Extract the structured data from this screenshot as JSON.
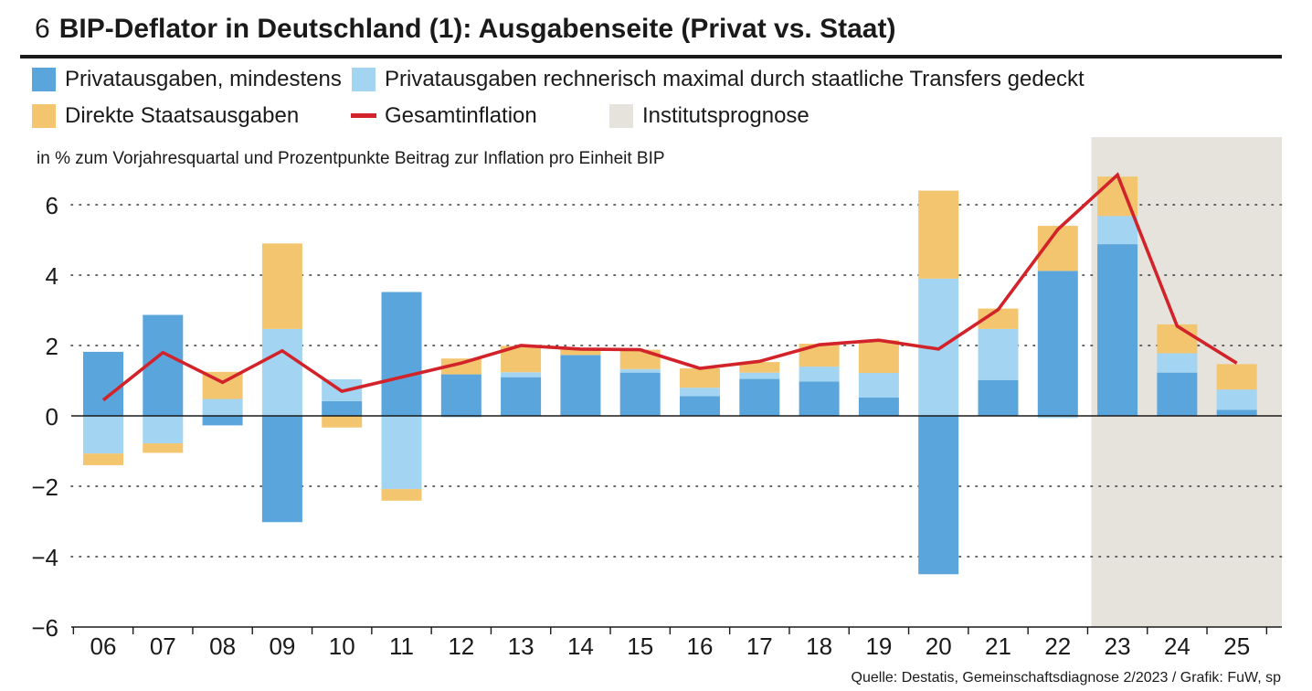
{
  "header": {
    "number": "6",
    "title": "BIP-Deflator in Deutschland (1): Ausgabenseite (Privat vs. Staat)"
  },
  "legend": {
    "priv_min": {
      "label": "Privatausgaben, mindestens",
      "color": "#5aa6dc"
    },
    "priv_max": {
      "label": "Privatausgaben rechnerisch maximal durch staatliche Transfers gedeckt",
      "color": "#a3d4f1"
    },
    "staat": {
      "label": "Direkte Staatsausgaben",
      "color": "#f3c56e"
    },
    "inflation": {
      "label": "Gesamtinflation",
      "color": "#d2232a"
    },
    "prognose": {
      "label": "Institutsprognose",
      "color": "#e6e3dc"
    }
  },
  "subtitle": "in % zum Vorjahresquartal und Prozentpunkte Beitrag zur Inflation pro Einheit BIP",
  "source": "Quelle: Destatis, Gemeinschaftsdiagnose 2/2023 / Grafik: FuW, sp",
  "chart_data": {
    "type": "bar",
    "stacked": true,
    "categories": [
      "06",
      "07",
      "08",
      "09",
      "10",
      "11",
      "12",
      "13",
      "14",
      "15",
      "16",
      "17",
      "18",
      "19",
      "20",
      "21",
      "22",
      "23",
      "24",
      "25"
    ],
    "series": [
      {
        "name": "Privatausgaben, mindestens",
        "color": "#5aa6dc",
        "values": [
          1.82,
          2.87,
          -0.27,
          -3.02,
          0.42,
          3.52,
          1.18,
          1.1,
          1.73,
          1.23,
          0.56,
          1.05,
          0.98,
          0.52,
          -4.5,
          1.02,
          4.12,
          4.88,
          1.23,
          0.17
        ]
      },
      {
        "name": "Privatausgaben rechnerisch maximal durch staatliche Transfers gedeckt",
        "color": "#a3d4f1",
        "values": [
          -1.07,
          -0.78,
          0.48,
          2.47,
          0.62,
          -2.08,
          -0.04,
          0.14,
          0.0,
          0.1,
          0.24,
          0.18,
          0.42,
          0.7,
          3.9,
          1.45,
          -0.06,
          0.8,
          0.55,
          0.58
        ]
      },
      {
        "name": "Direkte Staatsausgaben",
        "color": "#f3c56e",
        "values": [
          -0.33,
          -0.27,
          0.77,
          2.43,
          -0.33,
          -0.33,
          0.45,
          0.75,
          0.18,
          0.55,
          0.55,
          0.3,
          0.65,
          0.93,
          2.5,
          0.58,
          1.28,
          1.12,
          0.82,
          0.72
        ]
      }
    ],
    "line": {
      "name": "Gesamtinflation",
      "color": "#d2232a",
      "values": [
        0.45,
        1.8,
        0.95,
        1.85,
        0.7,
        1.1,
        1.5,
        2.0,
        1.9,
        1.88,
        1.35,
        1.55,
        2.02,
        2.15,
        1.9,
        3.02,
        5.3,
        6.85,
        2.55,
        1.5
      ]
    },
    "prognosis_from": "23",
    "ylim": [
      -6,
      6.9
    ],
    "yticks": [
      6,
      4,
      2,
      0,
      -2,
      -4,
      -6
    ],
    "ytick_labels": [
      "6",
      "4",
      "2",
      "0",
      "−2",
      "−4",
      "−6"
    ],
    "xlabel": "",
    "ylabel": "in % zum Vorjahresquartal und Prozentpunkte Beitrag zur Inflation pro Einheit BIP",
    "grid": true
  }
}
